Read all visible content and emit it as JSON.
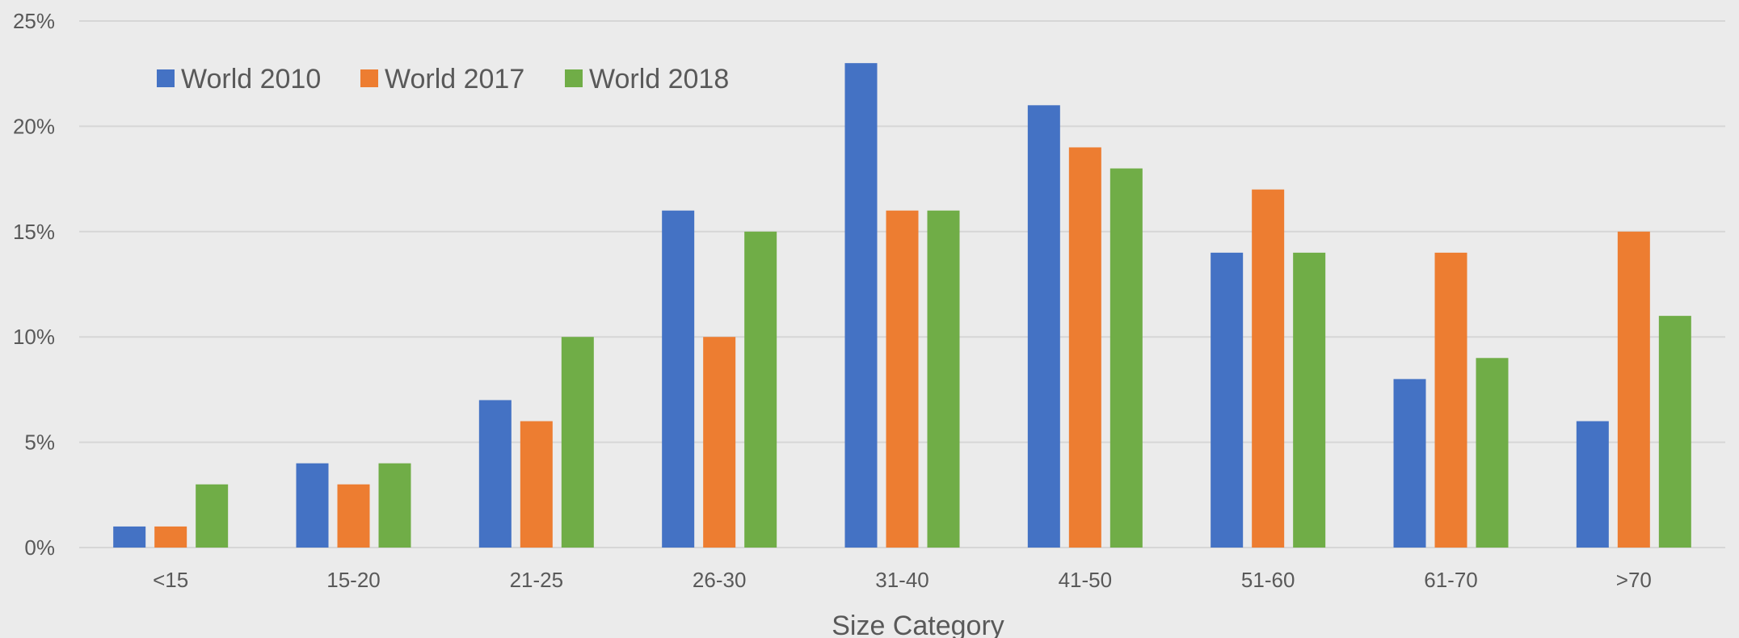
{
  "chart_data": {
    "type": "bar",
    "title": "",
    "xlabel": "Size Category",
    "ylabel": "",
    "ylim": [
      0,
      25
    ],
    "y_ticks": [
      "0%",
      "5%",
      "10%",
      "15%",
      "20%",
      "25%"
    ],
    "y_tick_values": [
      0,
      5,
      10,
      15,
      20,
      25
    ],
    "grid": true,
    "legend_position": "top-left",
    "categories": [
      "<15",
      "15-20",
      "21-25",
      "26-30",
      "31-40",
      "41-50",
      "51-60",
      "61-70",
      ">70"
    ],
    "series": [
      {
        "name": "World 2010",
        "color": "#4472c4",
        "values": [
          1,
          4,
          7,
          16,
          23,
          21,
          14,
          8,
          6
        ]
      },
      {
        "name": "World 2017",
        "color": "#ed7d31",
        "values": [
          1,
          3,
          6,
          10,
          16,
          19,
          17,
          14,
          15
        ]
      },
      {
        "name": "World 2018",
        "color": "#70ad47",
        "values": [
          3,
          4,
          10,
          15,
          16,
          18,
          14,
          9,
          11
        ]
      }
    ]
  }
}
